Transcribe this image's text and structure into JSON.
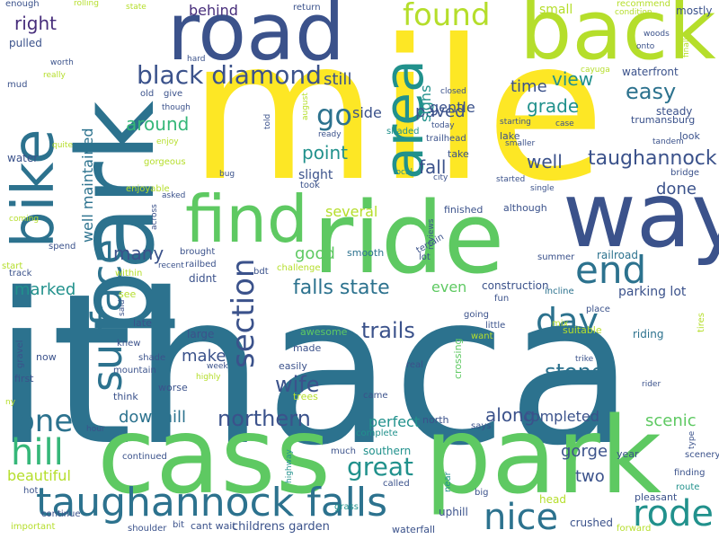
{
  "palette": {
    "yellow": "#fde725",
    "lime": "#b5de2b",
    "green": "#5ec962",
    "aqua": "#35b779",
    "teal": "#21918c",
    "blue": "#2c728e",
    "indigo": "#3b528b",
    "violet": "#472d7b",
    "dark": "#440154"
  },
  "words": [
    {
      "text": "ithaca",
      "color": "blue"
    },
    {
      "text": "mile",
      "color": "yellow"
    },
    {
      "text": "park",
      "color": "blue"
    },
    {
      "text": "cass",
      "color": "green"
    },
    {
      "text": "park",
      "color": "green"
    },
    {
      "text": "ride",
      "color": "green"
    },
    {
      "text": "road",
      "color": "indigo"
    },
    {
      "text": "back",
      "color": "lime"
    },
    {
      "text": "way",
      "color": "indigo"
    },
    {
      "text": "bike",
      "color": "blue"
    },
    {
      "text": "find",
      "color": "green"
    },
    {
      "text": "area",
      "color": "teal"
    },
    {
      "text": "taughannock falls",
      "color": "blue"
    },
    {
      "text": "surface",
      "color": "blue"
    },
    {
      "text": "end",
      "color": "blue"
    },
    {
      "text": "rode",
      "color": "teal"
    },
    {
      "text": "nice",
      "color": "blue"
    },
    {
      "text": "hill",
      "color": "aqua"
    },
    {
      "text": "one",
      "color": "blue"
    },
    {
      "text": "black diamond",
      "color": "indigo"
    },
    {
      "text": "found",
      "color": "lime"
    },
    {
      "text": "section",
      "color": "indigo"
    },
    {
      "text": "day",
      "color": "blue"
    },
    {
      "text": "go",
      "color": "blue"
    },
    {
      "text": "great",
      "color": "teal"
    },
    {
      "text": "northern",
      "color": "indigo"
    },
    {
      "text": "taughannock",
      "color": "indigo"
    },
    {
      "text": "falls state",
      "color": "blue"
    },
    {
      "text": "easy",
      "color": "blue"
    },
    {
      "text": "wife",
      "color": "indigo"
    },
    {
      "text": "stone",
      "color": "blue"
    },
    {
      "text": "trails",
      "color": "indigo"
    },
    {
      "text": "many",
      "color": "indigo"
    },
    {
      "text": "right",
      "color": "violet"
    },
    {
      "text": "behind",
      "color": "violet"
    },
    {
      "text": "around",
      "color": "aqua"
    },
    {
      "text": "view",
      "color": "teal"
    },
    {
      "text": "paved",
      "color": "indigo"
    },
    {
      "text": "still",
      "color": "indigo"
    },
    {
      "text": "point",
      "color": "teal"
    },
    {
      "text": "fall",
      "color": "indigo"
    },
    {
      "text": "well",
      "color": "indigo"
    },
    {
      "text": "grade",
      "color": "teal"
    },
    {
      "text": "time",
      "color": "indigo"
    },
    {
      "text": "done",
      "color": "indigo"
    },
    {
      "text": "marked",
      "color": "teal"
    },
    {
      "text": "good",
      "color": "green"
    },
    {
      "text": "several",
      "color": "lime"
    },
    {
      "text": "make",
      "color": "indigo"
    },
    {
      "text": "downhill",
      "color": "blue"
    },
    {
      "text": "perfect",
      "color": "teal"
    },
    {
      "text": "along",
      "color": "indigo"
    },
    {
      "text": "completed",
      "color": "indigo"
    },
    {
      "text": "scenic",
      "color": "green"
    },
    {
      "text": "two",
      "color": "indigo"
    },
    {
      "text": "gorge",
      "color": "indigo"
    },
    {
      "text": "beautiful",
      "color": "lime"
    },
    {
      "text": "even",
      "color": "green"
    },
    {
      "text": "signs",
      "color": "teal"
    },
    {
      "text": "gentle",
      "color": "indigo"
    },
    {
      "text": "small",
      "color": "lime"
    },
    {
      "text": "side",
      "color": "indigo"
    },
    {
      "text": "well maintained",
      "color": "blue"
    },
    {
      "text": "parking lot",
      "color": "indigo"
    },
    {
      "text": "construction",
      "color": "indigo"
    },
    {
      "text": "railroad",
      "color": "blue"
    },
    {
      "text": "riding",
      "color": "blue"
    },
    {
      "text": "shaded",
      "color": "teal"
    },
    {
      "text": "trailhead",
      "color": "indigo"
    },
    {
      "text": "take",
      "color": "indigo"
    },
    {
      "text": "lake",
      "color": "indigo"
    },
    {
      "text": "slight",
      "color": "indigo"
    },
    {
      "text": "took",
      "color": "indigo"
    },
    {
      "text": "finished",
      "color": "indigo"
    },
    {
      "text": "although",
      "color": "indigo"
    },
    {
      "text": "summer",
      "color": "indigo"
    },
    {
      "text": "smooth",
      "color": "blue"
    },
    {
      "text": "lot",
      "color": "indigo"
    },
    {
      "text": "awesome",
      "color": "green"
    },
    {
      "text": "made",
      "color": "indigo"
    },
    {
      "text": "easily",
      "color": "indigo"
    },
    {
      "text": "crossing",
      "color": "green"
    },
    {
      "text": "mix",
      "color": "lime"
    },
    {
      "text": "suitable",
      "color": "lime"
    },
    {
      "text": "fun",
      "color": "indigo"
    },
    {
      "text": "going",
      "color": "indigo"
    },
    {
      "text": "little",
      "color": "indigo"
    },
    {
      "text": "place",
      "color": "indigo"
    },
    {
      "text": "incline",
      "color": "blue"
    },
    {
      "text": "want",
      "color": "lime"
    },
    {
      "text": "north",
      "color": "indigo"
    },
    {
      "text": "says",
      "color": "indigo"
    },
    {
      "text": "complete",
      "color": "teal"
    },
    {
      "text": "southern",
      "color": "teal"
    },
    {
      "text": "much",
      "color": "indigo"
    },
    {
      "text": "called",
      "color": "indigo"
    },
    {
      "text": "waterfall",
      "color": "indigo"
    },
    {
      "text": "uphill",
      "color": "indigo"
    },
    {
      "text": "big",
      "color": "indigo"
    },
    {
      "text": "head",
      "color": "lime"
    },
    {
      "text": "crushed",
      "color": "indigo"
    },
    {
      "text": "pleasant",
      "color": "indigo"
    },
    {
      "text": "forward",
      "color": "lime"
    },
    {
      "text": "route",
      "color": "teal"
    },
    {
      "text": "finding",
      "color": "indigo"
    },
    {
      "text": "scenery",
      "color": "indigo"
    },
    {
      "text": "year",
      "color": "indigo"
    },
    {
      "text": "type",
      "color": "indigo"
    },
    {
      "text": "childrens garden",
      "color": "indigo"
    },
    {
      "text": "grass",
      "color": "teal"
    },
    {
      "text": "highway",
      "color": "teal"
    },
    {
      "text": "near",
      "color": "teal"
    },
    {
      "text": "reviews",
      "color": "indigo"
    },
    {
      "text": "terrain",
      "color": "indigo"
    },
    {
      "text": "shoulder",
      "color": "indigo"
    },
    {
      "text": "bit",
      "color": "indigo"
    },
    {
      "text": "cant wait",
      "color": "indigo"
    },
    {
      "text": "continued",
      "color": "indigo"
    },
    {
      "text": "hot",
      "color": "indigo"
    },
    {
      "text": "continue",
      "color": "indigo"
    },
    {
      "text": "important",
      "color": "lime"
    },
    {
      "text": "hour",
      "color": "indigo"
    },
    {
      "text": "ny",
      "color": "lime"
    },
    {
      "text": "first",
      "color": "indigo"
    },
    {
      "text": "gravel",
      "color": "indigo"
    },
    {
      "text": "now",
      "color": "indigo"
    },
    {
      "text": "knew",
      "color": "indigo"
    },
    {
      "text": "late",
      "color": "indigo"
    },
    {
      "text": "said",
      "color": "indigo"
    },
    {
      "text": "see",
      "color": "lime"
    },
    {
      "text": "shade",
      "color": "indigo"
    },
    {
      "text": "mountain",
      "color": "indigo"
    },
    {
      "text": "worse",
      "color": "indigo"
    },
    {
      "text": "think",
      "color": "indigo"
    },
    {
      "text": "week",
      "color": "indigo"
    },
    {
      "text": "highly",
      "color": "lime"
    },
    {
      "text": "trees",
      "color": "lime"
    },
    {
      "text": "came",
      "color": "indigo"
    },
    {
      "text": "real",
      "color": "indigo"
    },
    {
      "text": "large",
      "color": "indigo"
    },
    {
      "text": "didnt",
      "color": "indigo"
    },
    {
      "text": "recent",
      "color": "indigo"
    },
    {
      "text": "railbed",
      "color": "indigo"
    },
    {
      "text": "bdt",
      "color": "indigo"
    },
    {
      "text": "brought",
      "color": "indigo"
    },
    {
      "text": "challenge",
      "color": "lime"
    },
    {
      "text": "within",
      "color": "lime"
    },
    {
      "text": "start",
      "color": "lime"
    },
    {
      "text": "track",
      "color": "indigo"
    },
    {
      "text": "spend",
      "color": "indigo"
    },
    {
      "text": "coming",
      "color": "lime"
    },
    {
      "text": "water",
      "color": "indigo"
    },
    {
      "text": "quite",
      "color": "lime"
    },
    {
      "text": "mud",
      "color": "indigo"
    },
    {
      "text": "really",
      "color": "lime"
    },
    {
      "text": "pulled",
      "color": "indigo"
    },
    {
      "text": "worth",
      "color": "indigo"
    },
    {
      "text": "enough",
      "color": "indigo"
    },
    {
      "text": "rolling",
      "color": "lime"
    },
    {
      "text": "state",
      "color": "lime"
    },
    {
      "text": "return",
      "color": "indigo"
    },
    {
      "text": "woods",
      "color": "indigo"
    },
    {
      "text": "onto",
      "color": "indigo"
    },
    {
      "text": "recommend",
      "color": "lime"
    },
    {
      "text": "condition",
      "color": "lime"
    },
    {
      "text": "mostly",
      "color": "indigo"
    },
    {
      "text": "finally",
      "color": "lime"
    },
    {
      "text": "hard",
      "color": "indigo"
    },
    {
      "text": "waterfront",
      "color": "indigo"
    },
    {
      "text": "cayuga",
      "color": "lime"
    },
    {
      "text": "steady",
      "color": "indigo"
    },
    {
      "text": "trumansburg",
      "color": "indigo"
    },
    {
      "text": "look",
      "color": "indigo"
    },
    {
      "text": "tandem",
      "color": "indigo"
    },
    {
      "text": "bridge",
      "color": "indigo"
    },
    {
      "text": "case",
      "color": "indigo"
    },
    {
      "text": "starting",
      "color": "indigo"
    },
    {
      "text": "smaller",
      "color": "indigo"
    },
    {
      "text": "started",
      "color": "indigo"
    },
    {
      "text": "single",
      "color": "indigo"
    },
    {
      "text": "closed",
      "color": "indigo"
    },
    {
      "text": "city",
      "color": "indigo"
    },
    {
      "text": "local",
      "color": "teal"
    },
    {
      "text": "today",
      "color": "indigo"
    },
    {
      "text": "bug",
      "color": "indigo"
    },
    {
      "text": "ready",
      "color": "indigo"
    },
    {
      "text": "told",
      "color": "indigo"
    },
    {
      "text": "august",
      "color": "lime"
    },
    {
      "text": "give",
      "color": "indigo"
    },
    {
      "text": "though",
      "color": "indigo"
    },
    {
      "text": "old",
      "color": "indigo"
    },
    {
      "text": "enjoy",
      "color": "lime"
    },
    {
      "text": "gorgeous",
      "color": "lime"
    },
    {
      "text": "enjoyable",
      "color": "lime"
    },
    {
      "text": "asked",
      "color": "indigo"
    },
    {
      "text": "across",
      "color": "indigo"
    },
    {
      "text": "tires",
      "color": "lime"
    },
    {
      "text": "trike",
      "color": "indigo"
    },
    {
      "text": "rider",
      "color": "indigo"
    }
  ]
}
